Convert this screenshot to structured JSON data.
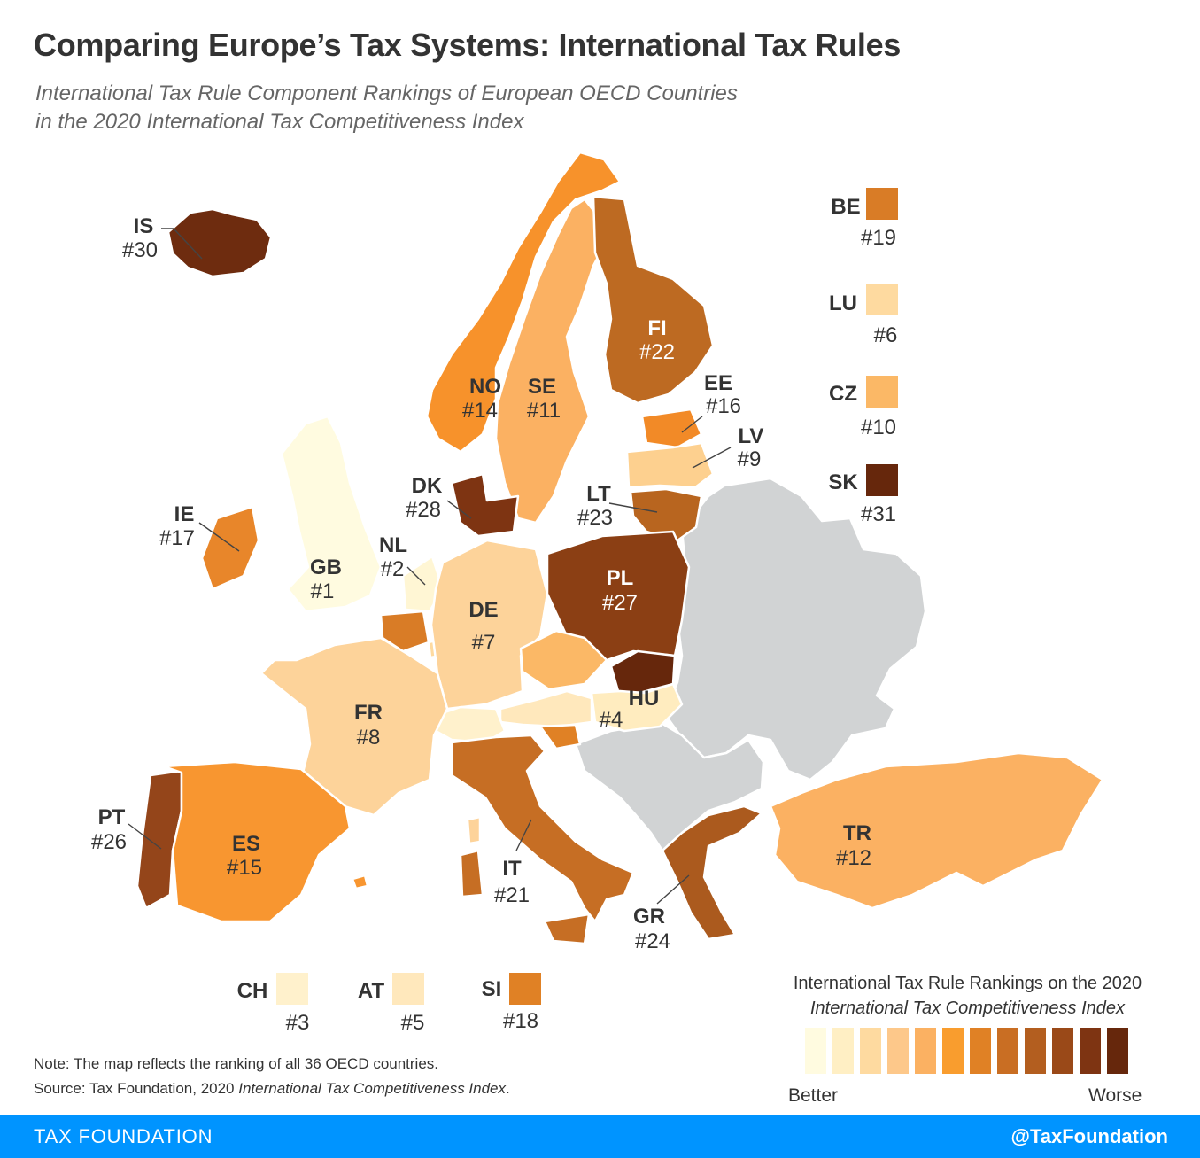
{
  "header": {
    "title": "Comparing Europe’s Tax Systems: International Tax Rules",
    "subtitle_line1": "International Tax Rule Component Rankings of European OECD Countries",
    "subtitle_line2": "in the 2020 International Tax Competitiveness Index"
  },
  "colors": {
    "nondata": "#d1d3d4",
    "scale": [
      "#fffbe0",
      "#ffefc4",
      "#fedaa0",
      "#fdc88a",
      "#fbb162",
      "#f99d2e",
      "#e08125",
      "#c96e23",
      "#b35e1f",
      "#9a4918",
      "#7e3412",
      "#66270c"
    ]
  },
  "countries": [
    {
      "code": "IS",
      "rank": "#30",
      "color": "#6e2c0f"
    },
    {
      "code": "NO",
      "rank": "#14",
      "color": "#f7922b"
    },
    {
      "code": "SE",
      "rank": "#11",
      "color": "#fbb162"
    },
    {
      "code": "FI",
      "rank": "#22",
      "color": "#bd6a22"
    },
    {
      "code": "EE",
      "rank": "#16",
      "color": "#f28a27"
    },
    {
      "code": "LV",
      "rank": "#9",
      "color": "#fdd08f"
    },
    {
      "code": "LT",
      "rank": "#23",
      "color": "#b8651f"
    },
    {
      "code": "DK",
      "rank": "#28",
      "color": "#7e3412"
    },
    {
      "code": "IE",
      "rank": "#17",
      "color": "#e8862a"
    },
    {
      "code": "GB",
      "rank": "#1",
      "color": "#fffbe0"
    },
    {
      "code": "NL",
      "rank": "#2",
      "color": "#fff6d4"
    },
    {
      "code": "DE",
      "rank": "#7",
      "color": "#fdd39a"
    },
    {
      "code": "PL",
      "rank": "#27",
      "color": "#8b3f14"
    },
    {
      "code": "FR",
      "rank": "#8",
      "color": "#fdd39a"
    },
    {
      "code": "HU",
      "rank": "#4",
      "color": "#ffecbf"
    },
    {
      "code": "PT",
      "rank": "#26",
      "color": "#94451a"
    },
    {
      "code": "ES",
      "rank": "#15",
      "color": "#f89630"
    },
    {
      "code": "IT",
      "rank": "#21",
      "color": "#c66e24"
    },
    {
      "code": "GR",
      "rank": "#24",
      "color": "#ab5a1e"
    },
    {
      "code": "TR",
      "rank": "#12",
      "color": "#fbb162"
    },
    {
      "code": "BE",
      "rank": "#19",
      "color": "#d97c26"
    },
    {
      "code": "LU",
      "rank": "#6",
      "color": "#fedaa0"
    },
    {
      "code": "CZ",
      "rank": "#10",
      "color": "#fbb866"
    },
    {
      "code": "SK",
      "rank": "#31",
      "color": "#66270c"
    },
    {
      "code": "CH",
      "rank": "#3",
      "color": "#fff1cc"
    },
    {
      "code": "AT",
      "rank": "#5",
      "color": "#ffe8bc"
    },
    {
      "code": "SI",
      "rank": "#18",
      "color": "#e08125"
    }
  ],
  "legend": {
    "title_line1": "International Tax Rule Rankings on the 2020",
    "title_line2": "International Tax Competitiveness Index",
    "better": "Better",
    "worse": "Worse"
  },
  "notes": {
    "note": "Note: The map reflects the ranking of all 36 OECD countries.",
    "source_prefix": "Source: Tax Foundation, 2020 ",
    "source_italic": "International Tax Competitiveness Index",
    "source_suffix": "."
  },
  "footer": {
    "brand": "TAX FOUNDATION",
    "handle": "@TaxFoundation"
  }
}
